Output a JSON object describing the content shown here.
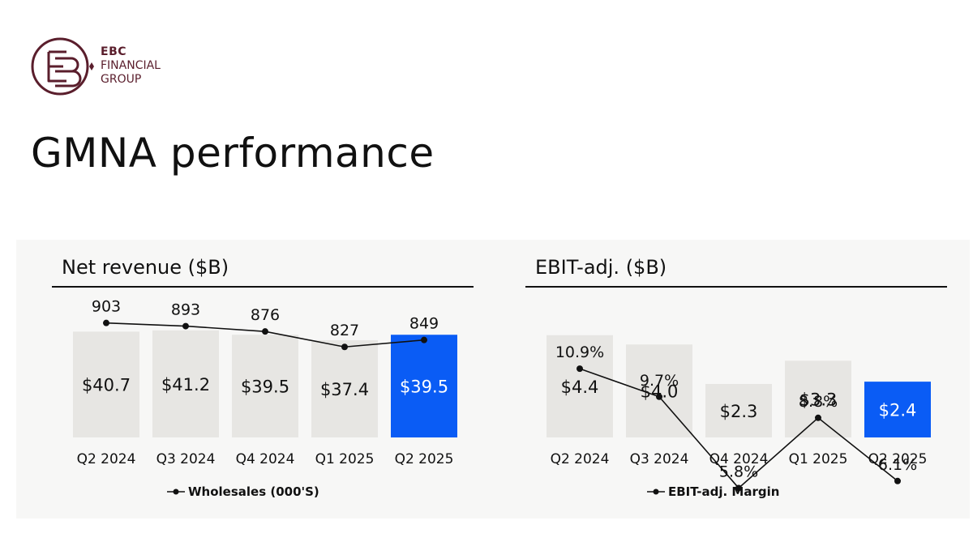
{
  "brand": {
    "line1": "EBC",
    "line2": "FINANCIAL",
    "line3": "GROUP",
    "color": "#5a1e2c"
  },
  "page": {
    "title": "GMNA performance"
  },
  "colors": {
    "bar": "#e7e6e3",
    "highlight": "#0a5cf5",
    "line": "#111111",
    "panel": "#f7f7f6"
  },
  "chart_data": [
    {
      "type": "bar",
      "title": "Net revenue ($B)",
      "categories": [
        "Q2 2024",
        "Q3 2024",
        "Q4 2024",
        "Q1 2025",
        "Q2 2025"
      ],
      "values": [
        40.7,
        41.2,
        39.5,
        37.4,
        39.5
      ],
      "value_labels": [
        "$40.7",
        "$41.2",
        "$39.5",
        "$37.4",
        "$39.5"
      ],
      "highlight_index": 4,
      "ylim": [
        0,
        43
      ],
      "line_series": {
        "name": "Wholesales (000'S)",
        "values": [
          903,
          893,
          876,
          827,
          849
        ],
        "labels": [
          "903",
          "893",
          "876",
          "827",
          "849"
        ],
        "ylim": [
          0,
          951
        ]
      },
      "legend": "bottom-center",
      "grid": false
    },
    {
      "type": "bar",
      "title": "EBIT-adj. ($B)",
      "categories": [
        "Q2 2024",
        "Q3 2024",
        "Q4 2024",
        "Q1 2025",
        "Q2 2025"
      ],
      "values": [
        4.4,
        4.0,
        2.3,
        3.3,
        2.4
      ],
      "value_labels": [
        "$4.4",
        "$4.0",
        "$2.3",
        "$3.3",
        "$2.4"
      ],
      "highlight_index": 4,
      "ylim": [
        0,
        4.6
      ],
      "line_series": {
        "name": "EBIT-adj. Margin",
        "values": [
          10.9,
          9.7,
          5.8,
          8.8,
          6.1
        ],
        "labels": [
          "10.9%",
          "9.7%",
          "5.8%",
          "8.8%",
          "6.1%"
        ],
        "ylim": [
          0,
          13.5
        ]
      },
      "legend": "bottom-center",
      "grid": false
    }
  ]
}
